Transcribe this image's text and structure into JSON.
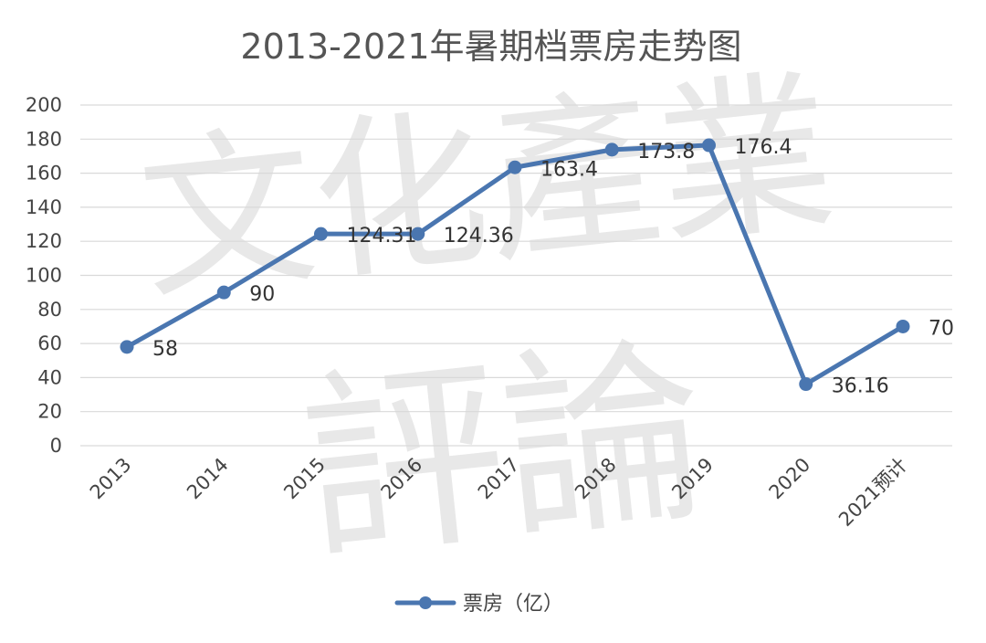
{
  "chart_data": {
    "type": "line",
    "title": "2013-2021年暑期档票房走势图",
    "categories": [
      "2013",
      "2014",
      "2015",
      "2016",
      "2017",
      "2018",
      "2019",
      "2020",
      "2021预计"
    ],
    "series": [
      {
        "name": "票房（亿）",
        "values": [
          58,
          90,
          124.31,
          124.36,
          163.4,
          173.8,
          176.4,
          36.16,
          70
        ]
      }
    ],
    "data_labels": [
      "58",
      "90",
      "124.31",
      "124.36",
      "163.4",
      "173.8",
      "176.4",
      "36.16",
      "70"
    ],
    "ylim": [
      0,
      200
    ],
    "yticks": [
      "0",
      "20",
      "40",
      "60",
      "80",
      "100",
      "120",
      "140",
      "160",
      "180",
      "200"
    ],
    "grid": true,
    "legend_position": "bottom",
    "line_color": "#4a76b0"
  },
  "watermark": {
    "top": "文化產業",
    "bottom": "評論"
  }
}
